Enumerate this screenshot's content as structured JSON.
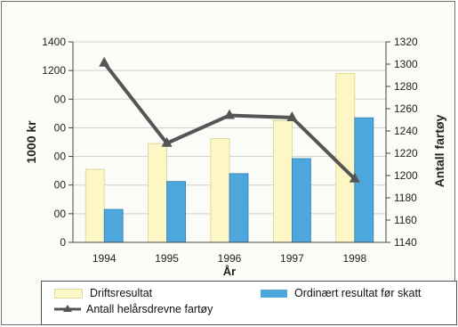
{
  "chart_data": {
    "type": "bar",
    "categories": [
      "1994",
      "1995",
      "1996",
      "1997",
      "1998"
    ],
    "xlabel": "År",
    "ylabel": "1000 kr",
    "y2label": "Antall fartøy",
    "ylim": [
      0,
      1400
    ],
    "y2lim": [
      1140,
      1320
    ],
    "yticks": [
      "0",
      "00",
      "00",
      "00",
      "00",
      "00",
      "1200",
      "1400"
    ],
    "y2ticks": [
      "1140",
      "1160",
      "1180",
      "1200",
      "1220",
      "1240",
      "1260",
      "1280",
      "1300",
      "1320"
    ],
    "grid": true,
    "legend_position": "bottom",
    "series": [
      {
        "name": "Driftsresultat",
        "type": "bar",
        "axis": "left",
        "color": "#fdf7c5",
        "values": [
          510,
          690,
          725,
          850,
          1180
        ]
      },
      {
        "name": "Ordinært resultat før skatt",
        "type": "bar",
        "axis": "left",
        "color": "#4ea7dc",
        "values": [
          230,
          425,
          480,
          585,
          870
        ]
      },
      {
        "name": "Antall helårsdrevne fartøy",
        "type": "line",
        "axis": "right",
        "color": "#555555",
        "values": [
          1301,
          1229,
          1254,
          1252,
          1197
        ]
      }
    ]
  }
}
